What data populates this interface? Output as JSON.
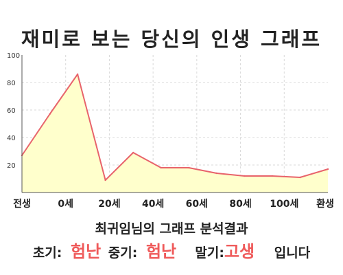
{
  "title": "재미로 보는 당신의 인생 그래프",
  "caption": "최귀임님의 그래프 분석결과",
  "result": {
    "early_label": "초기:",
    "early_value": "험난",
    "mid_label": "중기:",
    "mid_value": "험난",
    "late_label": "말기:",
    "late_value": "고생",
    "suffix": "입니다"
  },
  "colors": {
    "line": "#e8636b",
    "fill": "#ffffcc",
    "grid": "#d9d9d9",
    "accent_text": "#ef5a5a"
  },
  "chart_data": {
    "type": "area",
    "title": "재미로 보는 당신의 인생 그래프",
    "xlabel": "",
    "ylabel": "",
    "x_ticks": [
      "전생",
      "0세",
      "20세",
      "40세",
      "60세",
      "80세",
      "100세",
      "환생"
    ],
    "y_ticks": [
      "20",
      "40",
      "60",
      "80",
      "100"
    ],
    "ylim": [
      0,
      100
    ],
    "grid": true,
    "legend": "none",
    "series": [
      {
        "x": [
          "전생",
          "0세",
          "20세",
          "",
          "40세",
          "",
          "60세",
          "",
          "80세",
          "",
          "100세",
          "환생"
        ],
        "values": [
          27,
          57,
          86,
          9,
          29,
          18,
          18,
          14,
          12,
          12,
          11,
          17
        ]
      }
    ]
  }
}
